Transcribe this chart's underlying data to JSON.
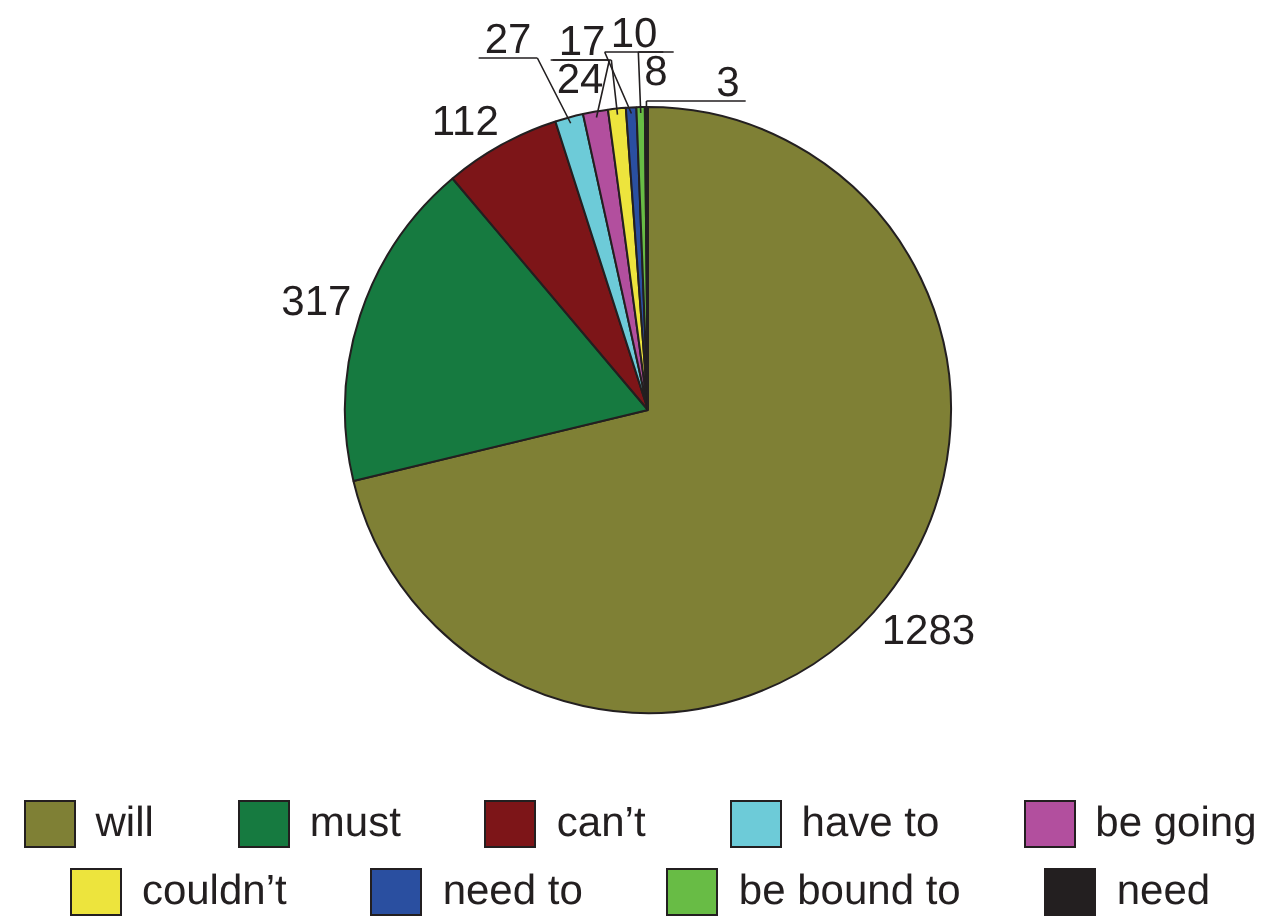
{
  "chart_data": {
    "type": "pie",
    "categories": [
      "will",
      "must",
      "can’t",
      "have to",
      "be going",
      "couldn’t",
      "need to",
      "be bound to",
      "need"
    ],
    "values": [
      1283,
      317,
      112,
      27,
      24,
      17,
      10,
      8,
      3
    ],
    "colors": [
      "#7f8035",
      "#167a40",
      "#7d1518",
      "#6dcbd8",
      "#b24f9e",
      "#ede43d",
      "#2a4fa0",
      "#68bc45",
      "#231f20"
    ],
    "data_labels": true,
    "legend": "bottom"
  }
}
